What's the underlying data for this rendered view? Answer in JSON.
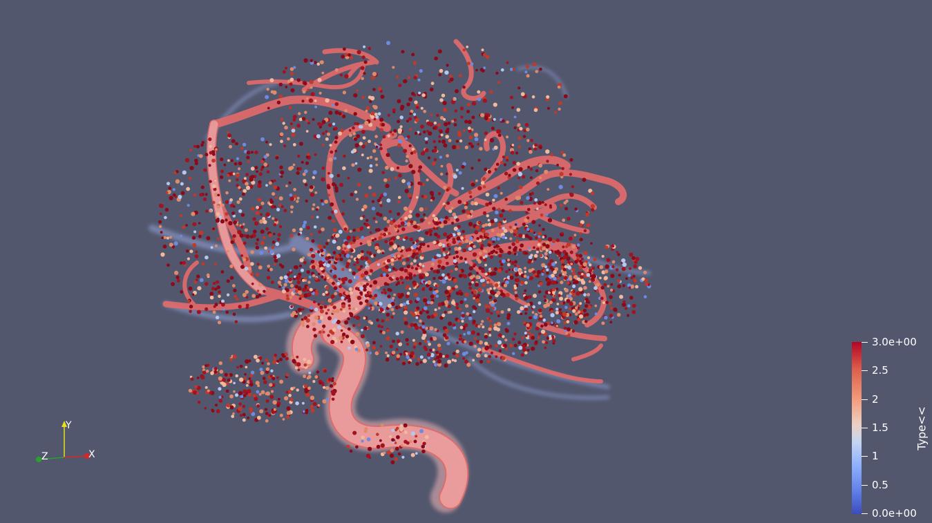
{
  "view": {
    "background_color": "#52576e",
    "render_type": "3D volume and glyph render of cerebral blood vessels"
  },
  "orientation_axes": {
    "x_label": "X",
    "y_label": "Y",
    "z_label": "Z",
    "x_color": "#d62728",
    "y_color": "#e8e01a",
    "z_color": "#2ca02c"
  },
  "color_legend": {
    "title": "Type<<",
    "colormap": [
      "#3b4cc0",
      "#6282ea",
      "#8db0fe",
      "#c5d5f0",
      "#edd1c2",
      "#f49a7b",
      "#dd5f4b",
      "#b40426"
    ],
    "ticks": [
      {
        "label": "3.0e+00",
        "value": 3.0
      },
      {
        "label": "2.5",
        "value": 2.5
      },
      {
        "label": "2",
        "value": 2.0
      },
      {
        "label": "1.5",
        "value": 1.5
      },
      {
        "label": "1",
        "value": 1.0
      },
      {
        "label": "0.5",
        "value": 0.5
      },
      {
        "label": "0.0e+00",
        "value": 0.0
      }
    ],
    "range": [
      0,
      3
    ]
  }
}
